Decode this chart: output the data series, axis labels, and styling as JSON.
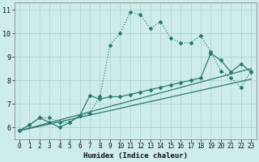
{
  "xlabel": "Humidex (Indice chaleur)",
  "bg_color": "#ceecea",
  "grid_color": "#aed4d0",
  "line_color": "#2a7a70",
  "xlim": [
    -0.5,
    23.5
  ],
  "ylim": [
    5.5,
    11.3
  ],
  "xticks": [
    0,
    1,
    2,
    3,
    4,
    5,
    6,
    7,
    8,
    9,
    10,
    11,
    12,
    13,
    14,
    15,
    16,
    17,
    18,
    19,
    20,
    21,
    22,
    23
  ],
  "yticks": [
    6,
    7,
    8,
    9,
    10,
    11
  ],
  "curve1_x": [
    0,
    1,
    2,
    3,
    4,
    5,
    6,
    7,
    8,
    9,
    10,
    11,
    12,
    13,
    14,
    15,
    16,
    17,
    18,
    19,
    20,
    21,
    22,
    23
  ],
  "curve1_y": [
    5.85,
    6.1,
    6.4,
    6.4,
    6.2,
    6.2,
    6.5,
    6.6,
    7.3,
    9.5,
    10.0,
    10.9,
    10.8,
    10.2,
    10.5,
    9.8,
    9.6,
    9.6,
    9.9,
    9.2,
    8.4,
    8.1,
    7.7,
    8.4
  ],
  "curve2_x": [
    0,
    1,
    2,
    3,
    4,
    5,
    6,
    7,
    8,
    9,
    10,
    11,
    12,
    13,
    14,
    15,
    16,
    17,
    18,
    19,
    20,
    21,
    22,
    23
  ],
  "curve2_y": [
    5.85,
    6.1,
    6.4,
    6.2,
    6.0,
    6.2,
    6.5,
    7.35,
    7.2,
    7.3,
    7.3,
    7.4,
    7.5,
    7.6,
    7.7,
    7.8,
    7.9,
    8.0,
    8.1,
    9.15,
    8.85,
    8.35,
    8.7,
    8.35
  ],
  "curve3_x": [
    0,
    23
  ],
  "curve3_y": [
    5.85,
    8.05
  ],
  "curve4_x": [
    0,
    23
  ],
  "curve4_y": [
    5.85,
    8.5
  ]
}
